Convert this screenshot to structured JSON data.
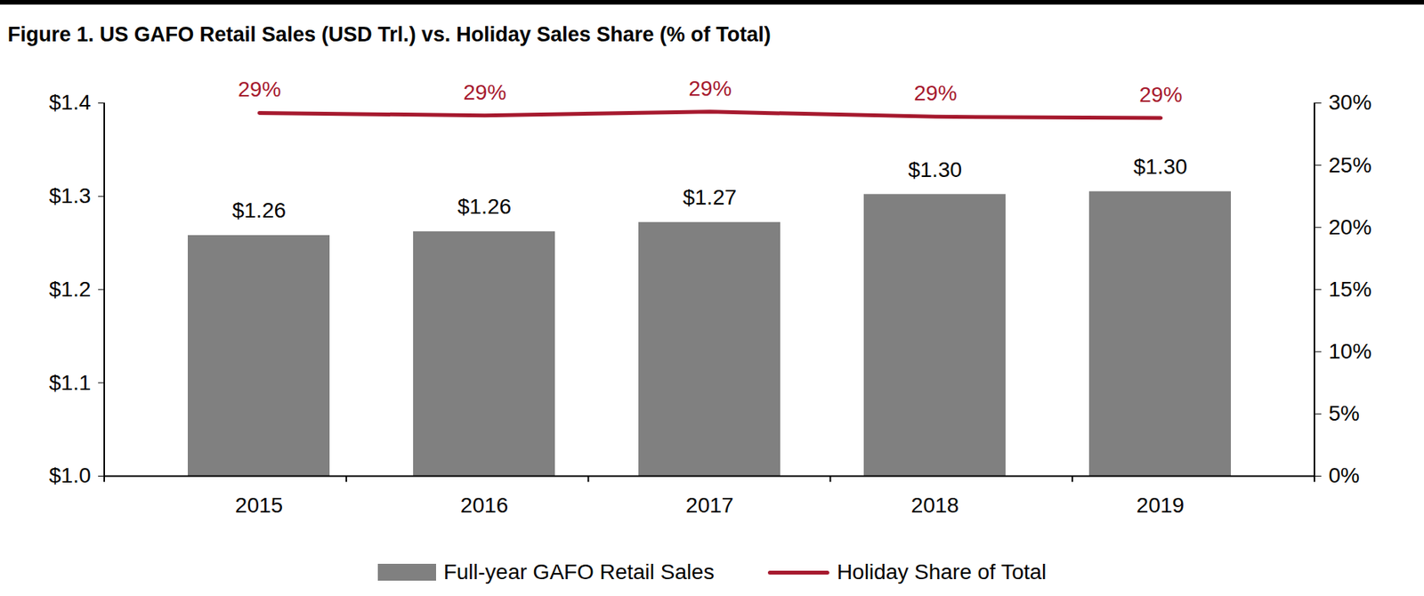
{
  "chart_data": {
    "type": "bar",
    "title": "Figure 1. US GAFO Retail Sales (USD Trl.) vs. Holiday Sales Share (% of Total)",
    "categories": [
      "2015",
      "2016",
      "2017",
      "2018",
      "2019"
    ],
    "series": [
      {
        "name": "Full-year GAFO Retail Sales",
        "type": "bar",
        "color": "#808080",
        "values": [
          1.258,
          1.262,
          1.272,
          1.302,
          1.305
        ],
        "value_labels": [
          "$1.26",
          "$1.26",
          "$1.27",
          "$1.30",
          "$1.30"
        ]
      },
      {
        "name": "Holiday Share of Total",
        "type": "line",
        "axis": "y2",
        "color": "#a6192e",
        "values": [
          29.2,
          29.0,
          29.3,
          28.9,
          28.8
        ],
        "value_labels": [
          "29%",
          "29%",
          "29%",
          "29%",
          "29%"
        ]
      }
    ],
    "ylim": [
      1.0,
      1.4
    ],
    "yticks": [
      {
        "value": 1.0,
        "label": "$1.0"
      },
      {
        "value": 1.1,
        "label": "$1.1"
      },
      {
        "value": 1.2,
        "label": "$1.2"
      },
      {
        "value": 1.3,
        "label": "$1.3"
      },
      {
        "value": 1.4,
        "label": "$1.4"
      }
    ],
    "y2lim": [
      0,
      30
    ],
    "y2ticks": [
      {
        "value": 0,
        "label": "0%"
      },
      {
        "value": 5,
        "label": "5%"
      },
      {
        "value": 10,
        "label": "10%"
      },
      {
        "value": 15,
        "label": "15%"
      },
      {
        "value": 20,
        "label": "20%"
      },
      {
        "value": 25,
        "label": "25%"
      },
      {
        "value": 30,
        "label": "30%"
      }
    ],
    "data_labels": true,
    "grid": false,
    "legend": "bottom"
  }
}
